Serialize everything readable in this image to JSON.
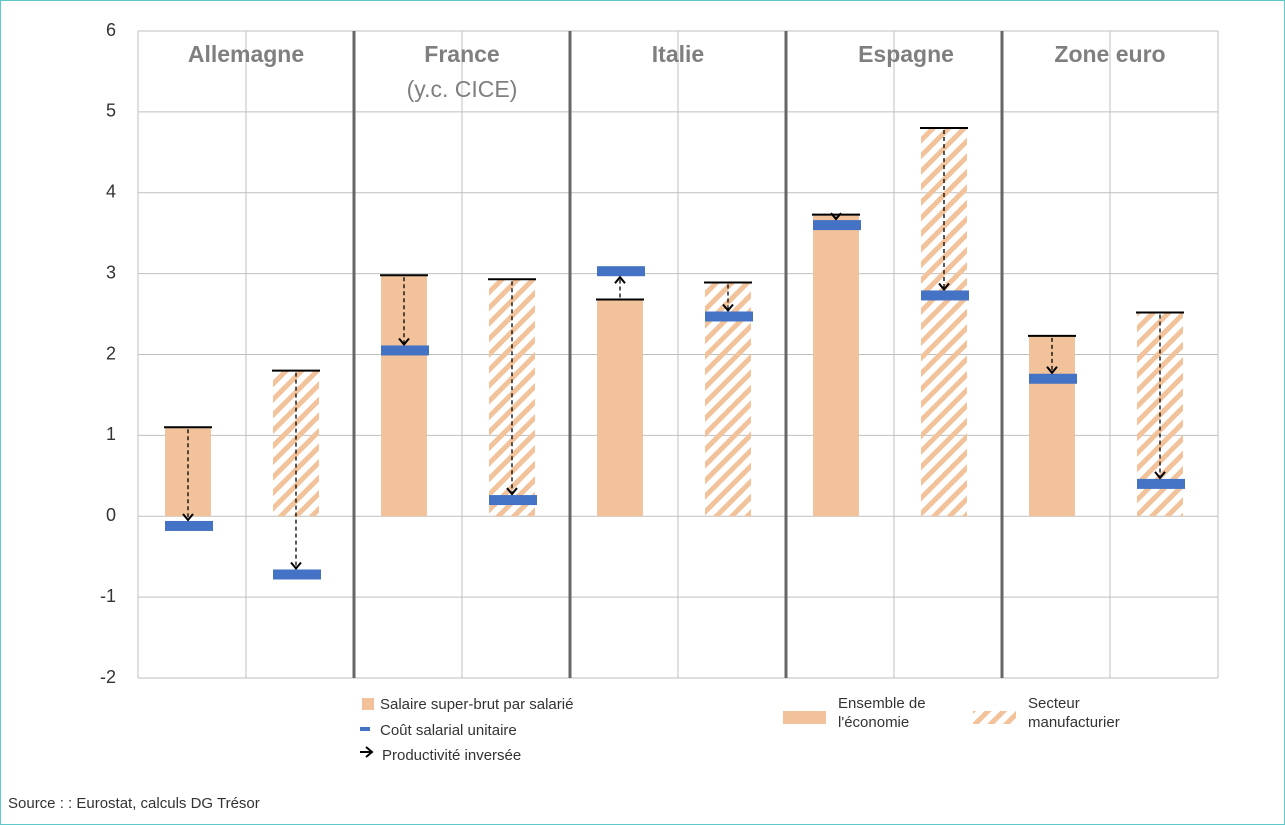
{
  "chart_data": {
    "type": "bar",
    "groups": [
      {
        "name": "Allemagne"
      },
      {
        "name": "France",
        "sublabel": "(y.c. CICE)"
      },
      {
        "name": "Italie"
      },
      {
        "name": "Espagne"
      },
      {
        "name": "Zone euro"
      }
    ],
    "sectors": [
      {
        "name": [
          "Ensemble de",
          "l'économie"
        ],
        "pattern": "solid"
      },
      {
        "name": [
          "Secteur",
          "manufacturier"
        ],
        "pattern": "hatch"
      }
    ],
    "series": [
      {
        "name": "Salaire super-brut par salarié",
        "color": "#f2c29b",
        "values": [
          1.1,
          1.8,
          2.98,
          2.93,
          2.68,
          2.89,
          3.73,
          4.8,
          2.23,
          2.52
        ]
      },
      {
        "name": "Coût salarial unitaire",
        "color": "#4472c4",
        "values": [
          -0.12,
          -0.72,
          2.05,
          0.2,
          3.03,
          2.47,
          3.6,
          2.73,
          1.7,
          0.4
        ]
      },
      {
        "name": "Productivité inversée",
        "color": "#000000"
      }
    ],
    "ylim": [
      -2,
      6
    ],
    "yticks": [
      -2,
      -1,
      0,
      1,
      2,
      3,
      4,
      5,
      6
    ],
    "grid": true,
    "source": "Source : : Eurostat, calculs DG Trésor"
  }
}
